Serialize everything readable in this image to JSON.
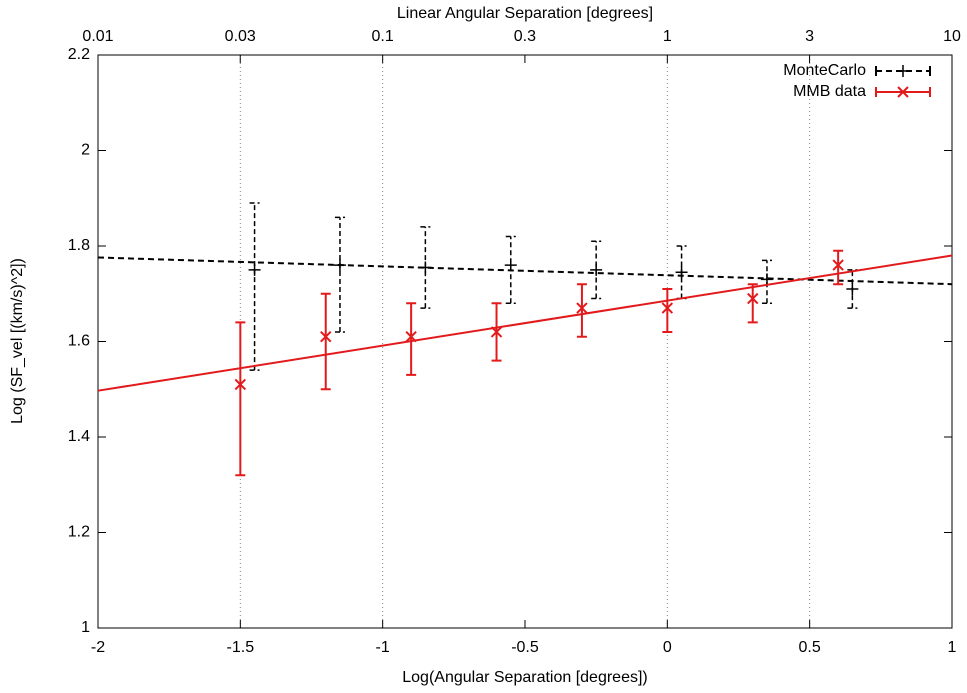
{
  "chart_data": {
    "type": "errorbar",
    "x2label": "Linear Angular Separation [degrees]",
    "xlabel": "Log(Angular Separation [degrees])",
    "ylabel": "Log (SF_vel [(km/s)^2])",
    "xlim": [
      -2,
      1
    ],
    "xticks": [
      -2,
      -1.5,
      -1,
      -0.5,
      0,
      0.5,
      1
    ],
    "x2lim": [
      0.01,
      10
    ],
    "x2scale": "log",
    "x2ticks": [
      0.01,
      {
        "value": 0.0316,
        "label": "0.03"
      },
      0.1,
      {
        "value": 0.316,
        "label": "0.3"
      },
      1,
      {
        "value": 3.16,
        "label": "3"
      },
      10
    ],
    "ylim": [
      1,
      2.2
    ],
    "yticks": [
      1,
      1.2,
      1.4,
      1.6,
      1.8,
      2,
      2.2
    ],
    "xgrid": [
      -1.5,
      -1,
      0,
      0.5
    ],
    "legend": "top-right",
    "series": [
      {
        "name": "MonteCarlo",
        "color": "#000000",
        "dashed": true,
        "marker": "plus",
        "x": [
          -1.45,
          -1.15,
          -0.85,
          -0.55,
          -0.25,
          0.05,
          0.35,
          0.65
        ],
        "values": [
          1.75,
          1.76,
          1.755,
          1.76,
          1.75,
          1.745,
          1.73,
          1.71
        ],
        "low": [
          1.54,
          1.62,
          1.67,
          1.68,
          1.69,
          1.69,
          1.68,
          1.67
        ],
        "high": [
          1.89,
          1.86,
          1.84,
          1.82,
          1.81,
          1.8,
          1.77,
          1.75
        ],
        "fit": {
          "x": [
            -2,
            1
          ],
          "y": [
            1.776,
            1.72
          ]
        }
      },
      {
        "name": "MMB data",
        "color": "#e31a1c",
        "dashed": false,
        "marker": "cross",
        "x": [
          -1.5,
          -1.2,
          -0.9,
          -0.6,
          -0.3,
          0,
          0.3,
          0.6
        ],
        "values": [
          1.51,
          1.61,
          1.61,
          1.62,
          1.67,
          1.67,
          1.69,
          1.76
        ],
        "low": [
          1.32,
          1.5,
          1.53,
          1.56,
          1.61,
          1.62,
          1.64,
          1.72
        ],
        "high": [
          1.64,
          1.7,
          1.68,
          1.68,
          1.72,
          1.71,
          1.72,
          1.79
        ],
        "fit": {
          "x": [
            -2,
            1
          ],
          "y": [
            1.497,
            1.78
          ]
        }
      }
    ]
  }
}
